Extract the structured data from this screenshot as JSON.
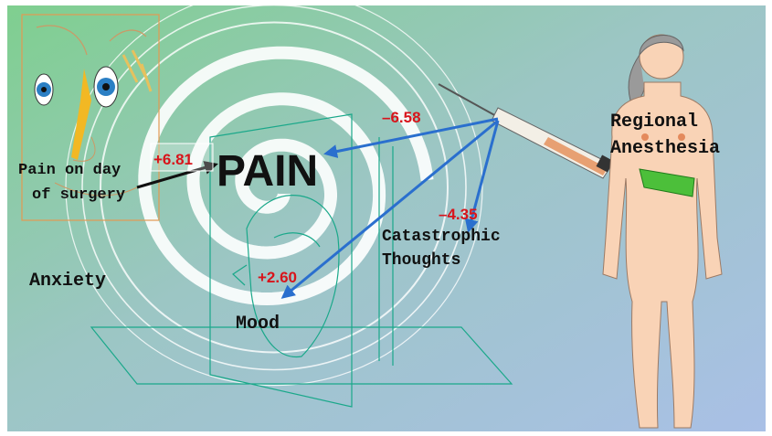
{
  "nodes": [
    {
      "label": "PAIN"
    },
    {
      "label": [
        "Pain on day",
        "of surgery"
      ]
    },
    {
      "label": [
        "Regional",
        "Anesthesia"
      ]
    },
    {
      "label": [
        "Catastrophic",
        "Thoughts"
      ]
    },
    {
      "label": "Anxiety"
    },
    {
      "label": "Mood"
    }
  ],
  "effects": [
    {
      "label": "+6.81"
    },
    {
      "label": "–6.58"
    },
    {
      "label": "–4.35"
    },
    {
      "label": "+2.60"
    }
  ]
}
